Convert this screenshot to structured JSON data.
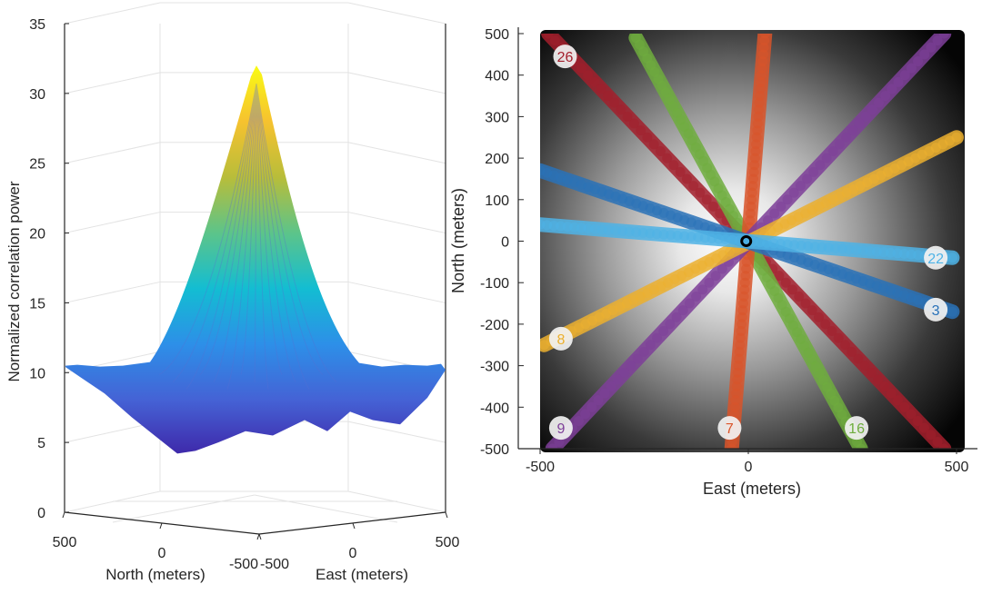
{
  "chart_data": [
    {
      "type": "surface3d",
      "zlabel": "Normalized correlation power",
      "xlabel": "North (meters)",
      "ylabel": "East (meters)",
      "z_ticks": [
        "0",
        "5",
        "10",
        "15",
        "20",
        "25",
        "30",
        "35"
      ],
      "zlim": [
        0,
        35
      ],
      "north_ticks": [
        "500",
        "0",
        "-500"
      ],
      "east_ticks": [
        "-500",
        "0",
        "500"
      ],
      "xlim": [
        -500,
        500
      ],
      "ylim": [
        -500,
        500
      ],
      "peak_value": 32,
      "floor_value": 10.5,
      "min_value": 4,
      "peak_location": [
        0,
        0
      ],
      "colormap": [
        "#3e26a8",
        "#4562d5",
        "#2d8fe8",
        "#13bdd2",
        "#5cc48a",
        "#b8bd3a",
        "#f6c22f",
        "#f9fb14"
      ]
    },
    {
      "type": "scatter",
      "xlabel": "East (meters)",
      "ylabel": "North (meters)",
      "x_ticks": [
        "-500",
        "0",
        "500"
      ],
      "y_ticks": [
        "500",
        "400",
        "300",
        "200",
        "100",
        "0",
        "-100",
        "-200",
        "-300",
        "-400",
        "-500"
      ],
      "xlim": [
        -500,
        500
      ],
      "ylim": [
        -500,
        500
      ],
      "background": "grayscale correlation heatmap, bright at center",
      "source_location": [
        -5,
        0
      ],
      "series": [
        {
          "name": "26",
          "color": "#a31f2c",
          "x": [
            -480,
            470
          ],
          "y": [
            500,
            -500
          ],
          "label_pos": [
            -440,
            445
          ]
        },
        {
          "name": "16",
          "color": "#6fad3e",
          "x": [
            -270,
            270
          ],
          "y": [
            490,
            -500
          ],
          "label_pos": [
            260,
            -450
          ]
        },
        {
          "name": "7",
          "color": "#d9542a",
          "x": [
            40,
            -40
          ],
          "y": [
            500,
            -500
          ],
          "label_pos": [
            -45,
            -450
          ]
        },
        {
          "name": "9",
          "color": "#7e3f99",
          "x": [
            -470,
            470
          ],
          "y": [
            -500,
            500
          ],
          "label_pos": [
            -450,
            -450
          ]
        },
        {
          "name": "8",
          "color": "#ecb02f",
          "x": [
            -490,
            500
          ],
          "y": [
            -250,
            250
          ],
          "label_pos": [
            -450,
            -235
          ]
        },
        {
          "name": "3",
          "color": "#2a72b8",
          "x": [
            -500,
            490
          ],
          "y": [
            170,
            -170
          ],
          "label_pos": [
            450,
            -165
          ]
        },
        {
          "name": "22",
          "color": "#4fb3e6",
          "x": [
            -500,
            490
          ],
          "y": [
            40,
            -40
          ],
          "label_pos": [
            450,
            -40
          ]
        }
      ]
    }
  ]
}
